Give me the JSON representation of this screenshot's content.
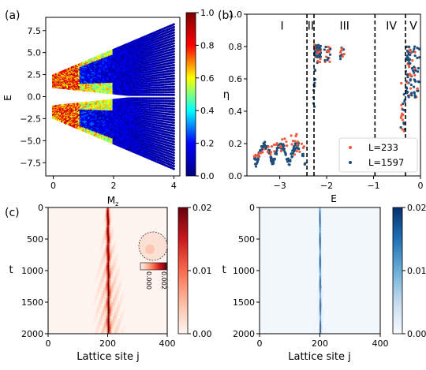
{
  "panels": {
    "a": {
      "tag": "(a)"
    },
    "b": {
      "tag": "(b)"
    },
    "c": {
      "tag": "(c)"
    }
  },
  "colors": {
    "jet": [
      "#00007f",
      "#0000ff",
      "#00ffff",
      "#ffff00",
      "#ff0000",
      "#7f0000"
    ],
    "reds": [
      "#fff5f0",
      "#fcbba1",
      "#fb6a4a",
      "#cb181d",
      "#67000d"
    ],
    "blues": [
      "#f7fbff",
      "#c6dbef",
      "#6baed6",
      "#2171b5",
      "#08306b"
    ],
    "orange_series": "#f05a3a",
    "navy_series": "#1f4e7a"
  },
  "chart_data": [
    {
      "id": "a",
      "type": "scatter",
      "xlabel": "M",
      "xlabel_sub": "z",
      "ylabel": "E",
      "xlim": [
        -0.25,
        4.2
      ],
      "ylim": [
        -9.0,
        9.0
      ],
      "xticks": [
        0,
        2,
        4
      ],
      "yticks": [
        -7.5,
        -5.0,
        -2.5,
        0.0,
        2.5,
        5.0,
        7.5
      ],
      "ytick_labels": [
        "−7.5",
        "−5.0",
        "−2.5",
        "0.0",
        "2.5",
        "5.0",
        "7.5"
      ],
      "description_values": {
        "mz_start": 0,
        "mz_end": 4,
        "band_top_at_mz0": 2.4,
        "band_bottom_at_mz0": 1.1,
        "band_top_at_mz4": 8.2,
        "gap_half_at_mz4": 0.2
      },
      "colorbar": {
        "ticks": [
          0.0,
          0.2,
          0.4,
          0.6,
          0.8,
          1.0
        ],
        "tick_labels": [
          "0.0",
          "0.2",
          "0.4",
          "0.6",
          "0.8",
          "1.0"
        ]
      }
    },
    {
      "id": "b",
      "type": "scatter",
      "xlabel": "E",
      "ylabel": "η",
      "xlim": [
        -3.7,
        0.0
      ],
      "ylim": [
        0.0,
        1.0
      ],
      "xticks": [
        -3,
        -2,
        -1,
        0
      ],
      "xtick_labels": [
        "−3",
        "−2",
        "−1",
        "0"
      ],
      "yticks": [
        0.0,
        0.2,
        0.4,
        0.6,
        0.8,
        1.0
      ],
      "ytick_labels": [
        "0.0",
        "0.2",
        "0.4",
        "0.6",
        "0.8",
        "1.0"
      ],
      "dashed_lines_x": [
        -2.42,
        -2.27,
        -0.97,
        -0.32
      ],
      "region_labels": [
        {
          "text": "I",
          "x": -2.95,
          "y": 0.93
        },
        {
          "text": "II",
          "x": -2.34,
          "y": 0.93
        },
        {
          "text": "III",
          "x": -1.62,
          "y": 0.93
        },
        {
          "text": "IV",
          "x": -0.62,
          "y": 0.93
        },
        {
          "text": "V",
          "x": -0.15,
          "y": 0.93
        }
      ],
      "legend_position": "lower-right",
      "series": [
        {
          "name": "L=233",
          "color": "#f05a3a"
        },
        {
          "name": "L=1597",
          "color": "#1f4e7a"
        }
      ]
    },
    {
      "id": "c-left",
      "type": "heatmap",
      "xlabel": "Lattice site j",
      "ylabel": "t",
      "xlim": [
        0,
        400
      ],
      "ylim": [
        2000,
        0
      ],
      "xticks": [
        0,
        200,
        400
      ],
      "yticks": [
        0,
        500,
        1000,
        1500,
        2000
      ],
      "center_site": 200,
      "colorbar": {
        "ticks": [
          0.0,
          0.01,
          0.02
        ],
        "tick_labels": [
          "0.00",
          "0.01",
          "0.02"
        ]
      },
      "inset": {
        "tick_labels": [
          "0.000",
          "0.002"
        ]
      }
    },
    {
      "id": "c-right",
      "type": "heatmap",
      "xlabel": "Lattice site j",
      "ylabel": "t",
      "xlim": [
        0,
        400
      ],
      "ylim": [
        2000,
        0
      ],
      "xticks": [
        0,
        200,
        400
      ],
      "yticks": [
        0,
        500,
        1000,
        1500,
        2000
      ],
      "center_site": 200,
      "colorbar": {
        "ticks": [
          0.0,
          0.01,
          0.02
        ],
        "tick_labels": [
          "0.00",
          "0.01",
          "0.02"
        ]
      }
    }
  ]
}
